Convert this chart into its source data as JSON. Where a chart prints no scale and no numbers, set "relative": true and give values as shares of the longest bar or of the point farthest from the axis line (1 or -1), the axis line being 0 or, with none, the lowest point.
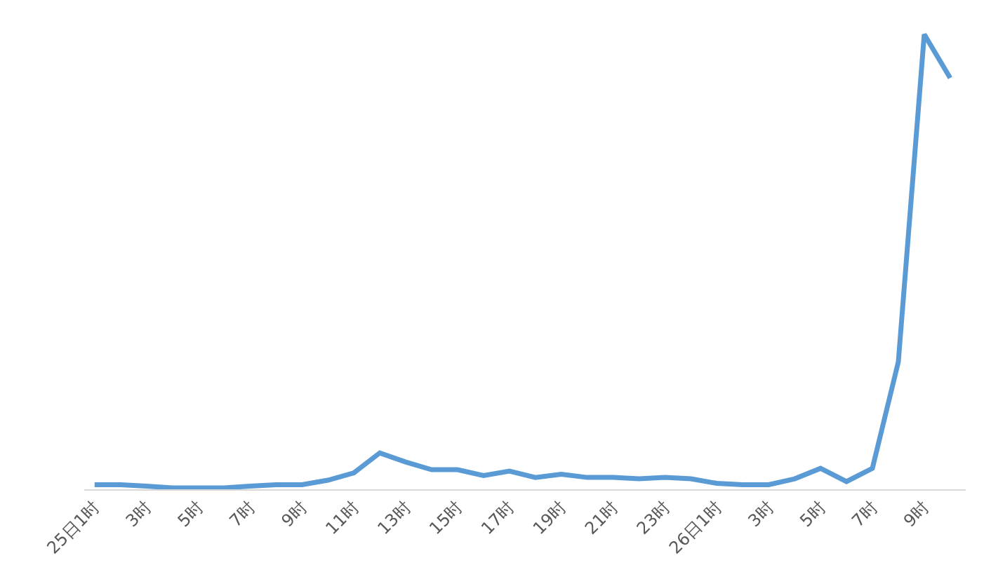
{
  "chart_data": {
    "type": "line",
    "relative": true,
    "legend": false,
    "marker": "none",
    "line_style": "solid",
    "categories": [
      "25日1时",
      null,
      "3时",
      null,
      "5时",
      null,
      "7时",
      null,
      "9时",
      null,
      "11时",
      null,
      "13时",
      null,
      "15时",
      null,
      "17时",
      null,
      "19时",
      null,
      "21时",
      null,
      "23时",
      null,
      "26日1时",
      null,
      "3时",
      null,
      "5时",
      null,
      "7时",
      null,
      "9时",
      null
    ],
    "series": [
      {
        "color": "#5b9bd5",
        "values": [
          0.01,
          0.01,
          0.007,
          0.003,
          0.003,
          0.003,
          0.007,
          0.01,
          0.01,
          0.02,
          0.036,
          0.08,
          0.06,
          0.043,
          0.043,
          0.03,
          0.04,
          0.026,
          0.033,
          0.026,
          0.026,
          0.023,
          0.026,
          0.023,
          0.013,
          0.01,
          0.01,
          0.023,
          0.046,
          0.017,
          0.046,
          0.28,
          1.0,
          0.904
        ]
      }
    ]
  }
}
